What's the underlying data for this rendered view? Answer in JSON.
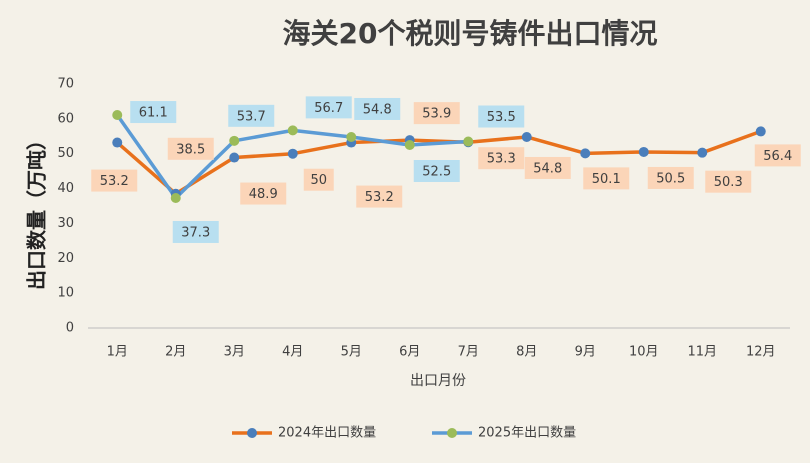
{
  "chart_data": {
    "type": "line",
    "title": "海关20个税则号铸件出口情况",
    "x_label": "出口月份",
    "y_label": "出口数量（万吨）",
    "categories": [
      "1月",
      "2月",
      "3月",
      "4月",
      "5月",
      "6月",
      "7月",
      "8月",
      "9月",
      "10月",
      "11月",
      "12月"
    ],
    "series": [
      {
        "name": "2024年出口数量",
        "color": "#e8711c",
        "marker_color": "#4a7ebb",
        "label_color": "#fbd5b8",
        "values": [
          53.2,
          38.5,
          48.9,
          50,
          53.2,
          53.9,
          53.3,
          54.8,
          50.1,
          50.5,
          50.3,
          56.4
        ]
      },
      {
        "name": "2025年出口数量",
        "color": "#5b9bd5",
        "marker_color": "#9bbb59",
        "label_color": "#b8dff0",
        "values": [
          61.1,
          37.3,
          53.7,
          56.7,
          54.8,
          52.5,
          53.5,
          null,
          null,
          null,
          null,
          null
        ]
      }
    ],
    "ylim": [
      0,
      70
    ],
    "yticks": [
      0,
      10,
      20,
      30,
      40,
      50,
      60,
      70
    ],
    "grid": false,
    "legend": "bottom"
  }
}
